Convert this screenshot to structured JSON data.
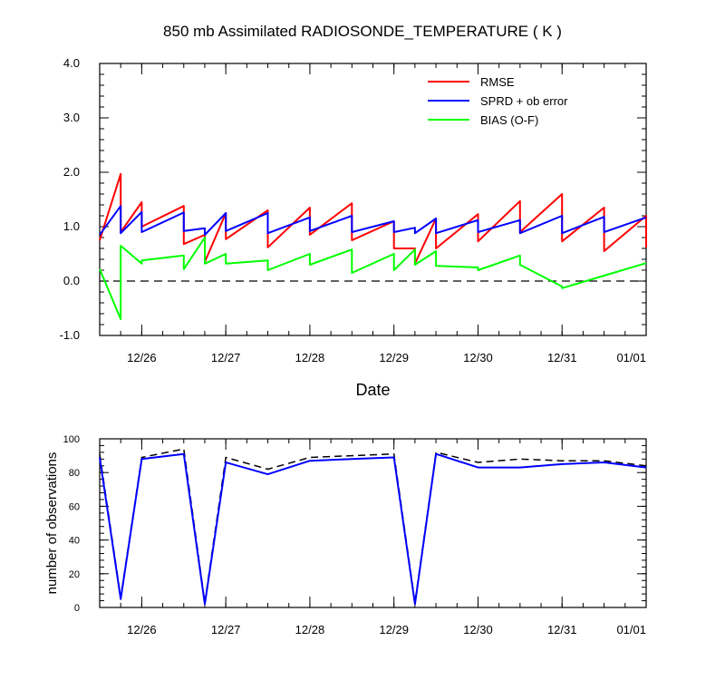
{
  "chart_data": [
    {
      "type": "line",
      "title": "850 mb Assimilated RADIOSONDE_TEMPERATURE ( K )",
      "xlabel": "Date",
      "ylabel": "",
      "ylim": [
        -1.0,
        4.0
      ],
      "yticks": [
        -1.0,
        0.0,
        1.0,
        2.0,
        3.0,
        4.0
      ],
      "ytick_labels": [
        "-1.0",
        "0.0",
        "1.0",
        "2.0",
        "3.0",
        "4.0"
      ],
      "xlim": [
        25.5,
        32.0
      ],
      "xticks": [
        26,
        27,
        28,
        29,
        30,
        31,
        32
      ],
      "xtick_labels": [
        "12/26",
        "12/27",
        "12/28",
        "12/29",
        "12/30",
        "12/31",
        "01/01"
      ],
      "legend_position": "top-right",
      "reference_line": {
        "y": 0.0,
        "style": "dashed"
      },
      "series": [
        {
          "name": "RMSE",
          "color": "#ff0000",
          "x": [
            25.5,
            25.75,
            25.75,
            26.0,
            26.0,
            26.5,
            26.5,
            26.75,
            26.75,
            27.0,
            27.0,
            27.5,
            27.5,
            28.0,
            28.0,
            28.5,
            28.5,
            29.0,
            29.0,
            29.25,
            29.25,
            29.5,
            29.5,
            30.0,
            30.0,
            30.5,
            30.5,
            31.0,
            31.0,
            31.5,
            31.5,
            32.0,
            32.0
          ],
          "y": [
            0.75,
            1.97,
            0.9,
            1.45,
            1.0,
            1.38,
            0.68,
            0.85,
            0.35,
            1.25,
            0.77,
            1.3,
            0.62,
            1.35,
            0.85,
            1.43,
            0.75,
            1.1,
            0.6,
            0.6,
            0.32,
            1.15,
            0.6,
            1.23,
            0.73,
            1.47,
            0.9,
            1.6,
            0.73,
            1.35,
            0.55,
            1.2,
            0.62
          ]
        },
        {
          "name": "SPRD + ob error",
          "color": "#0000ff",
          "x": [
            25.5,
            25.75,
            25.75,
            26.0,
            26.0,
            26.5,
            26.5,
            26.75,
            26.75,
            27.0,
            27.0,
            27.5,
            27.5,
            28.0,
            28.0,
            28.5,
            28.5,
            29.0,
            29.0,
            29.25,
            29.25,
            29.5,
            29.5,
            30.0,
            30.0,
            30.5,
            30.5,
            31.0,
            31.0,
            31.5,
            31.5,
            32.0
          ],
          "y": [
            0.85,
            1.38,
            0.88,
            1.27,
            0.9,
            1.26,
            0.92,
            0.97,
            0.85,
            1.25,
            0.92,
            1.25,
            0.88,
            1.17,
            0.92,
            1.2,
            0.9,
            1.1,
            0.9,
            0.98,
            0.88,
            1.15,
            0.88,
            1.12,
            0.9,
            1.12,
            0.88,
            1.2,
            0.88,
            1.18,
            0.9,
            1.17
          ]
        },
        {
          "name": "BIAS (O-F)",
          "color": "#00ff00",
          "x": [
            25.5,
            25.75,
            25.75,
            26.0,
            26.0,
            26.5,
            26.5,
            26.75,
            26.75,
            27.0,
            27.0,
            27.5,
            27.5,
            28.0,
            28.0,
            28.5,
            28.5,
            29.0,
            29.0,
            29.25,
            29.25,
            29.5,
            29.5,
            30.0,
            30.0,
            30.5,
            30.5,
            31.0,
            31.0,
            31.5,
            32.0
          ],
          "y": [
            0.22,
            -0.7,
            0.65,
            0.32,
            0.38,
            0.47,
            0.22,
            0.8,
            0.32,
            0.5,
            0.32,
            0.38,
            0.2,
            0.5,
            0.3,
            0.58,
            0.15,
            0.5,
            0.2,
            0.58,
            0.3,
            0.55,
            0.28,
            0.25,
            0.2,
            0.47,
            0.3,
            -0.1,
            -0.13,
            0.1,
            0.33
          ]
        }
      ]
    },
    {
      "type": "line",
      "title": "",
      "xlabel": "",
      "ylabel": "number of observations",
      "ylim": [
        0,
        100
      ],
      "yticks": [
        0,
        20,
        40,
        60,
        80,
        100
      ],
      "ytick_labels": [
        "0",
        "20",
        "40",
        "60",
        "80",
        "100"
      ],
      "xlim": [
        25.5,
        32.0
      ],
      "xticks": [
        26,
        27,
        28,
        29,
        30,
        31,
        32
      ],
      "xtick_labels": [
        "12/26",
        "12/27",
        "12/28",
        "12/29",
        "12/30",
        "12/31",
        "01/01"
      ],
      "series": [
        {
          "style": "dashed",
          "color": "#000000",
          "x": [
            25.5,
            25.75,
            26.0,
            26.5,
            26.75,
            27.0,
            27.5,
            28.0,
            28.5,
            29.0,
            29.25,
            29.5,
            30.0,
            30.5,
            31.0,
            31.5,
            32.0
          ],
          "y": [
            91,
            6,
            89,
            94,
            3,
            89,
            82,
            89,
            90,
            91,
            3,
            92,
            86,
            88,
            87,
            87,
            84
          ]
        },
        {
          "style": "solid",
          "color": "#0000ff",
          "x": [
            25.5,
            25.75,
            26.0,
            26.5,
            26.75,
            27.0,
            27.5,
            28.0,
            28.5,
            29.0,
            29.25,
            29.5,
            30.0,
            30.5,
            31.0,
            31.5,
            32.0
          ],
          "y": [
            89,
            5,
            88,
            91,
            2,
            86,
            79,
            87,
            88,
            89,
            2,
            91,
            83,
            83,
            85,
            86,
            83
          ]
        }
      ]
    }
  ]
}
